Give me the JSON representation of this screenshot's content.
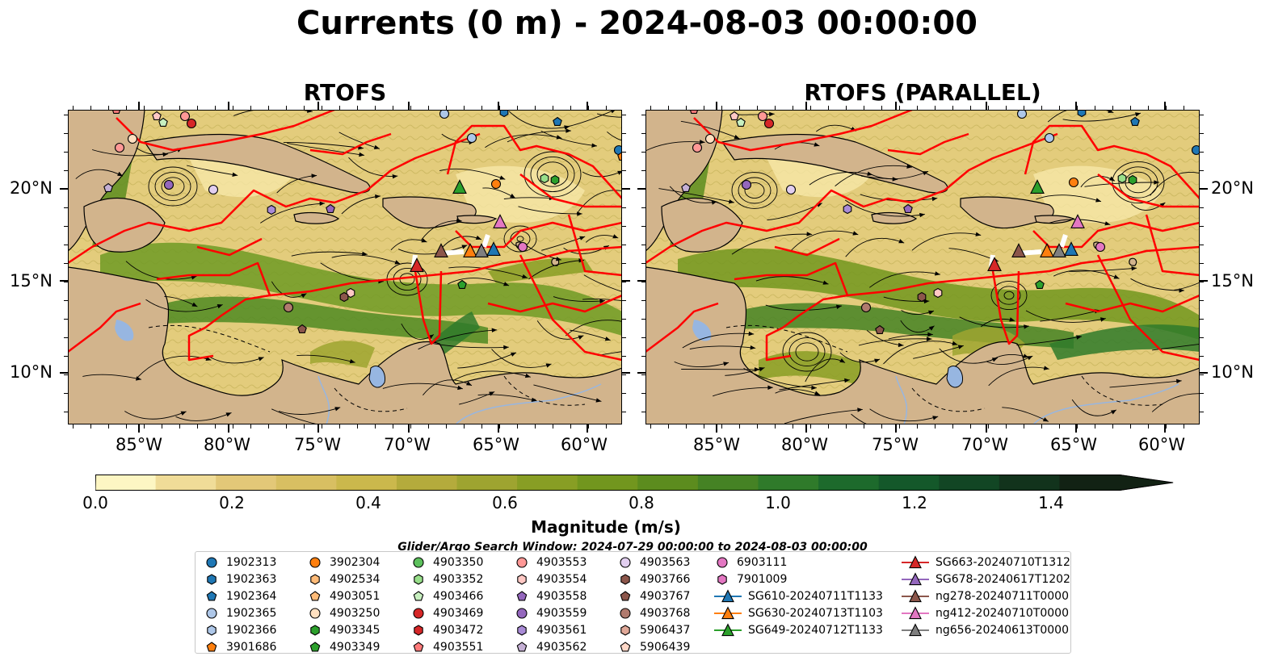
{
  "title": "Currents (0 m) - 2024-08-03 00:00:00",
  "panels": {
    "left_title": "RTOFS",
    "right_title": "RTOFS (PARALLEL)"
  },
  "axes": {
    "lat_labels": [
      "20°N",
      "15°N",
      "10°N"
    ],
    "lon_labels": [
      "85°W",
      "80°W",
      "75°W",
      "70°W",
      "65°W",
      "60°W"
    ]
  },
  "colorbar": {
    "label": "Magnitude (m/s)",
    "tick_labels": [
      "0.0",
      "0.2",
      "0.4",
      "0.6",
      "0.8",
      "1.0",
      "1.2",
      "1.4"
    ],
    "colors": [
      "#fdf6c3",
      "#f0dc98",
      "#e3c878",
      "#d8bf62",
      "#cbb84c",
      "#b4ab3c",
      "#9ea430",
      "#889e24",
      "#72961e",
      "#5c8c1e",
      "#458224",
      "#2f7a2a",
      "#1d6a2c",
      "#14582a",
      "#124624",
      "#12331c",
      "#122214"
    ],
    "extend": "max"
  },
  "map_colors": {
    "land": "#d2b48c",
    "water_feature": "#97b6e1",
    "boundary_lines": "#ff0000",
    "streamlines": "#000000"
  },
  "search_window": "Glider/Argo Search Window: 2024-07-29 00:00:00 to 2024-08-03 00:00:00",
  "legend": {
    "columns": [
      [
        {
          "label": "1902313",
          "marker": "circle",
          "color": "#1f77b4"
        },
        {
          "label": "1902363",
          "marker": "hexagon",
          "color": "#1f77b4"
        },
        {
          "label": "1902364",
          "marker": "pentagon",
          "color": "#1f77b4"
        },
        {
          "label": "1902365",
          "marker": "circle",
          "color": "#aec7e8"
        },
        {
          "label": "1902366",
          "marker": "hexagon",
          "color": "#aec7e8"
        },
        {
          "label": "3901686",
          "marker": "pentagon",
          "color": "#ff7f0e"
        }
      ],
      [
        {
          "label": "3902304",
          "marker": "circle",
          "color": "#ff7f0e"
        },
        {
          "label": "4902534",
          "marker": "hexagon",
          "color": "#ffbb78"
        },
        {
          "label": "4903051",
          "marker": "pentagon",
          "color": "#ffbb78"
        },
        {
          "label": "4903250",
          "marker": "circle",
          "color": "#ffe0c0"
        },
        {
          "label": "4903345",
          "marker": "hexagon",
          "color": "#2ca02c"
        },
        {
          "label": "4903349",
          "marker": "pentagon",
          "color": "#2ca02c"
        }
      ],
      [
        {
          "label": "4903350",
          "marker": "circle",
          "color": "#5cc05c"
        },
        {
          "label": "4903352",
          "marker": "hexagon",
          "color": "#98df8a"
        },
        {
          "label": "4903466",
          "marker": "pentagon",
          "color": "#c8f0c0"
        },
        {
          "label": "4903469",
          "marker": "circle",
          "color": "#d62728"
        },
        {
          "label": "4903472",
          "marker": "hexagon",
          "color": "#d62728"
        },
        {
          "label": "4903551",
          "marker": "pentagon",
          "color": "#ff7a7a"
        }
      ],
      [
        {
          "label": "4903553",
          "marker": "circle",
          "color": "#ff9896"
        },
        {
          "label": "4903554",
          "marker": "hexagon",
          "color": "#ffc8c4"
        },
        {
          "label": "4903558",
          "marker": "pentagon",
          "color": "#9467bd"
        },
        {
          "label": "4903559",
          "marker": "circle",
          "color": "#9467bd"
        },
        {
          "label": "4903561",
          "marker": "hexagon",
          "color": "#a98bd6"
        },
        {
          "label": "4903562",
          "marker": "pentagon",
          "color": "#c5b0d5"
        }
      ],
      [
        {
          "label": "4903563",
          "marker": "circle",
          "color": "#e2cff0"
        },
        {
          "label": "4903766",
          "marker": "hexagon",
          "color": "#8c564b"
        },
        {
          "label": "4903767",
          "marker": "pentagon",
          "color": "#8c564b"
        },
        {
          "label": "4903768",
          "marker": "circle",
          "color": "#b07a6e"
        },
        {
          "label": "5906437",
          "marker": "hexagon",
          "color": "#e0a898"
        },
        {
          "label": "5906439",
          "marker": "pentagon",
          "color": "#ffd8c8"
        }
      ],
      [
        {
          "label": "6903111",
          "marker": "circle",
          "color": "#e377c2"
        },
        {
          "label": "7901009",
          "marker": "hexagon",
          "color": "#e377c2"
        },
        {
          "label": "SG610-20240711T1133",
          "marker": "triangle-line",
          "color": "#1f77b4"
        },
        {
          "label": "SG630-20240713T1103",
          "marker": "triangle-line",
          "color": "#ff7f0e"
        },
        {
          "label": "SG649-20240712T1133",
          "marker": "triangle-line",
          "color": "#2ca02c"
        }
      ],
      [
        {
          "label": "SG663-20240710T1312",
          "marker": "triangle-line",
          "color": "#d62728"
        },
        {
          "label": "SG678-20240617T1202",
          "marker": "triangle-line",
          "color": "#9467bd"
        },
        {
          "label": "ng278-20240711T0000",
          "marker": "triangle-line",
          "color": "#8c564b"
        },
        {
          "label": "ng412-20240710T0000",
          "marker": "triangle-line",
          "color": "#e377c2"
        },
        {
          "label": "ng656-20240613T0000",
          "marker": "triangle-line",
          "color": "#7f7f7f"
        }
      ]
    ]
  }
}
